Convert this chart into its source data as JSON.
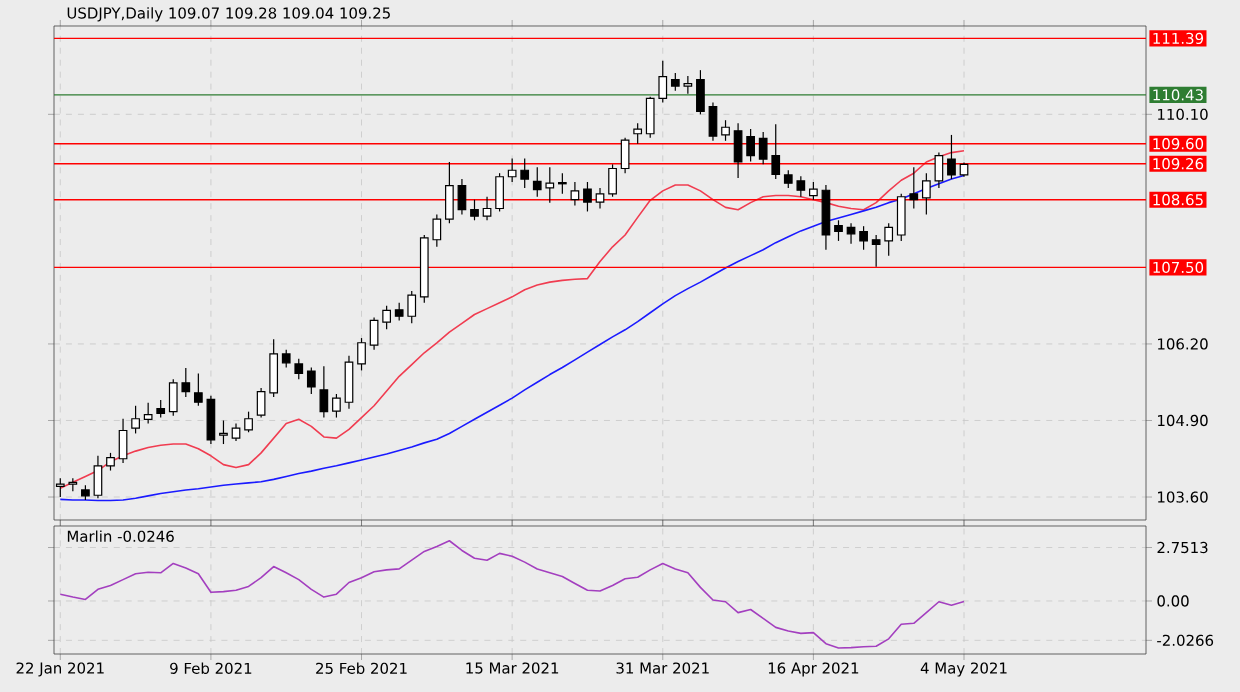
{
  "chart_data": [
    {
      "type": "candlestick",
      "title": "USDJPY,Daily 109.07 109.28 109.04 109.25",
      "categories": [
        null,
        null,
        null,
        null,
        null,
        null,
        null,
        null,
        null,
        null,
        null,
        null,
        null,
        null,
        null,
        null,
        null,
        null,
        null,
        null,
        null,
        null,
        null,
        null,
        null,
        null,
        null,
        null,
        null,
        null,
        null,
        null,
        null,
        null,
        null,
        null,
        null,
        null,
        null,
        null,
        null,
        null,
        null,
        null,
        null,
        null,
        null,
        null,
        null,
        null,
        null,
        null,
        null,
        null,
        null,
        null,
        null,
        null,
        null,
        null,
        null,
        null,
        null,
        null,
        null,
        null,
        null,
        null,
        null,
        null,
        null,
        null,
        null,
        null,
        null,
        null,
        null,
        null,
        null,
        null,
        null,
        null,
        null,
        null,
        null,
        null,
        null
      ],
      "ohlc": [
        [
          103.78,
          103.92,
          103.6,
          103.82
        ],
        [
          103.82,
          103.92,
          103.7,
          103.85
        ],
        [
          103.72,
          103.8,
          103.55,
          103.62
        ],
        [
          103.63,
          104.3,
          103.58,
          104.13
        ],
        [
          104.13,
          104.35,
          104.05,
          104.27
        ],
        [
          104.25,
          104.93,
          104.18,
          104.73
        ],
        [
          104.77,
          105.15,
          104.68,
          104.93
        ],
        [
          104.92,
          105.2,
          104.85,
          105.0
        ],
        [
          105.1,
          105.25,
          104.95,
          105.02
        ],
        [
          105.05,
          105.6,
          104.98,
          105.54
        ],
        [
          105.54,
          105.79,
          105.3,
          105.39
        ],
        [
          105.37,
          105.7,
          105.15,
          105.21
        ],
        [
          105.26,
          105.32,
          104.5,
          104.57
        ],
        [
          104.65,
          104.9,
          104.5,
          104.68
        ],
        [
          104.6,
          104.85,
          104.55,
          104.77
        ],
        [
          104.74,
          105.05,
          104.7,
          104.93
        ],
        [
          104.99,
          105.45,
          104.95,
          105.39
        ],
        [
          105.37,
          106.28,
          105.3,
          106.03
        ],
        [
          106.03,
          106.1,
          105.8,
          105.88
        ],
        [
          105.86,
          105.95,
          105.6,
          105.7
        ],
        [
          105.74,
          105.8,
          105.35,
          105.47
        ],
        [
          105.42,
          105.82,
          104.95,
          105.05
        ],
        [
          105.06,
          105.35,
          104.95,
          105.28
        ],
        [
          105.21,
          106.0,
          105.1,
          105.89
        ],
        [
          105.86,
          106.3,
          105.75,
          106.22
        ],
        [
          106.18,
          106.65,
          106.1,
          106.6
        ],
        [
          106.57,
          106.85,
          106.45,
          106.77
        ],
        [
          106.78,
          106.9,
          106.6,
          106.67
        ],
        [
          106.67,
          107.1,
          106.55,
          107.03
        ],
        [
          107.0,
          108.05,
          106.9,
          108.0
        ],
        [
          107.97,
          108.4,
          107.85,
          108.32
        ],
        [
          108.32,
          109.29,
          108.25,
          108.89
        ],
        [
          108.89,
          109.0,
          108.4,
          108.48
        ],
        [
          108.48,
          108.65,
          108.3,
          108.37
        ],
        [
          108.37,
          108.7,
          108.3,
          108.5
        ],
        [
          108.5,
          109.1,
          108.45,
          109.04
        ],
        [
          109.04,
          109.35,
          108.95,
          109.15
        ],
        [
          109.15,
          109.35,
          108.85,
          109.0
        ],
        [
          108.96,
          109.2,
          108.7,
          108.82
        ],
        [
          108.85,
          109.2,
          108.6,
          108.93
        ],
        [
          108.92,
          109.1,
          108.75,
          108.94
        ],
        [
          108.65,
          108.95,
          108.55,
          108.8
        ],
        [
          108.83,
          108.95,
          108.45,
          108.61
        ],
        [
          108.61,
          108.85,
          108.5,
          108.75
        ],
        [
          108.75,
          109.25,
          108.7,
          109.18
        ],
        [
          109.18,
          109.7,
          109.1,
          109.66
        ],
        [
          109.77,
          109.95,
          109.6,
          109.85
        ],
        [
          109.77,
          110.4,
          109.7,
          110.37
        ],
        [
          110.37,
          111.01,
          110.3,
          110.74
        ],
        [
          110.69,
          110.8,
          110.5,
          110.58
        ],
        [
          110.58,
          110.75,
          110.45,
          110.62
        ],
        [
          110.69,
          110.85,
          110.1,
          110.15
        ],
        [
          110.23,
          110.3,
          109.65,
          109.73
        ],
        [
          109.75,
          110.0,
          109.65,
          109.88
        ],
        [
          109.82,
          109.95,
          109.02,
          109.29
        ],
        [
          109.72,
          109.85,
          109.3,
          109.4
        ],
        [
          109.69,
          109.8,
          109.25,
          109.34
        ],
        [
          109.4,
          109.93,
          109.0,
          109.08
        ],
        [
          109.07,
          109.15,
          108.85,
          108.93
        ],
        [
          108.97,
          109.05,
          108.7,
          108.81
        ],
        [
          108.72,
          108.95,
          108.65,
          108.83
        ],
        [
          108.81,
          108.9,
          107.8,
          108.05
        ],
        [
          108.21,
          108.3,
          107.95,
          108.11
        ],
        [
          108.18,
          108.25,
          107.9,
          108.07
        ],
        [
          108.11,
          108.2,
          107.8,
          107.95
        ],
        [
          107.97,
          108.05,
          107.51,
          107.89
        ],
        [
          107.95,
          108.25,
          107.7,
          108.18
        ],
        [
          108.05,
          108.75,
          107.95,
          108.7
        ],
        [
          108.75,
          109.2,
          108.5,
          108.65
        ],
        [
          108.68,
          109.1,
          108.4,
          108.97
        ],
        [
          108.97,
          109.45,
          108.85,
          109.4
        ],
        [
          109.34,
          109.75,
          109.0,
          109.07
        ],
        [
          109.07,
          109.28,
          109.04,
          109.25
        ],
        null,
        null,
        null,
        null,
        null,
        null,
        null,
        null,
        null,
        null,
        null,
        null,
        null,
        null
      ],
      "series": [
        {
          "type": "line",
          "color": "#f03c50",
          "values": [
            103.75,
            103.85,
            103.95,
            104.05,
            104.2,
            104.3,
            104.38,
            104.44,
            104.48,
            104.5,
            104.5,
            104.42,
            104.3,
            104.15,
            104.1,
            104.15,
            104.35,
            104.6,
            104.85,
            104.92,
            104.8,
            104.62,
            104.6,
            104.75,
            104.95,
            105.15,
            105.4,
            105.65,
            105.85,
            106.05,
            106.22,
            106.4,
            106.55,
            106.7,
            106.8,
            106.9,
            107.0,
            107.12,
            107.2,
            107.25,
            107.28,
            107.3,
            107.31,
            107.6,
            107.85,
            108.05,
            108.35,
            108.64,
            108.8,
            108.9,
            108.9,
            108.8,
            108.65,
            108.52,
            108.48,
            108.6,
            108.7,
            108.72,
            108.72,
            108.7,
            108.65,
            108.6,
            108.54,
            108.5,
            108.48,
            108.6,
            108.8,
            108.98,
            109.1,
            109.29,
            109.38,
            109.45,
            109.48,
            null,
            null,
            null,
            null,
            null,
            null,
            null,
            null,
            null,
            null,
            null,
            null,
            null,
            null
          ]
        },
        {
          "type": "line",
          "color": "#1a1aff",
          "values": [
            103.56,
            103.55,
            103.55,
            103.54,
            103.54,
            103.55,
            103.58,
            103.62,
            103.66,
            103.69,
            103.72,
            103.74,
            103.77,
            103.8,
            103.82,
            103.84,
            103.86,
            103.9,
            103.95,
            104.0,
            104.04,
            104.09,
            104.13,
            104.18,
            104.23,
            104.28,
            104.33,
            104.39,
            104.45,
            104.52,
            104.58,
            104.68,
            104.8,
            104.92,
            105.04,
            105.16,
            105.28,
            105.42,
            105.55,
            105.68,
            105.8,
            105.93,
            106.06,
            106.19,
            106.32,
            106.44,
            106.58,
            106.73,
            106.88,
            107.02,
            107.14,
            107.25,
            107.37,
            107.49,
            107.6,
            107.7,
            107.8,
            107.92,
            108.02,
            108.12,
            108.2,
            108.28,
            108.34,
            108.4,
            108.46,
            108.52,
            108.6,
            108.66,
            108.75,
            108.84,
            108.92,
            109.0,
            109.06,
            null,
            null,
            null,
            null,
            null,
            null,
            null,
            null,
            null,
            null,
            null,
            null,
            null,
            null
          ]
        }
      ],
      "ylim": [
        103.21,
        111.6
      ],
      "yticks": [
        {
          "value": 103.6,
          "label": "103.60"
        },
        {
          "value": 104.9,
          "label": "104.90"
        },
        {
          "value": 106.2,
          "label": "106.20"
        },
        {
          "value": 110.1,
          "label": "110.10"
        }
      ],
      "ref_lines": [
        {
          "axis": "y",
          "value": 111.39,
          "label": "111.39",
          "color": "#ff0000"
        },
        {
          "axis": "y",
          "value": 110.43,
          "label": "110.43",
          "color": "#2e7d32"
        },
        {
          "axis": "y",
          "value": 109.6,
          "label": "109.60",
          "color": "#ff0000"
        },
        {
          "axis": "y",
          "value": 109.26,
          "label": "109.26",
          "color": "#ff0000"
        },
        {
          "axis": "y",
          "value": 108.65,
          "label": "108.65",
          "color": "#ff0000"
        },
        {
          "axis": "y",
          "value": 107.5,
          "label": "107.50",
          "color": "#ff0000"
        }
      ],
      "grid": true,
      "tick_labels": "y"
    },
    {
      "type": "line",
      "title": "Marlin -0.0246",
      "categories": [
        "22 Jan 2021",
        null,
        null,
        null,
        null,
        null,
        null,
        null,
        null,
        null,
        null,
        null,
        "9 Feb 2021",
        null,
        null,
        null,
        null,
        null,
        null,
        null,
        null,
        null,
        null,
        null,
        "25 Feb 2021",
        null,
        null,
        null,
        null,
        null,
        null,
        null,
        null,
        null,
        null,
        null,
        "15 Mar 2021",
        null,
        null,
        null,
        null,
        null,
        null,
        null,
        null,
        null,
        null,
        null,
        "31 Mar 2021",
        null,
        null,
        null,
        null,
        null,
        null,
        null,
        null,
        null,
        null,
        null,
        "16 Apr 2021",
        null,
        null,
        null,
        null,
        null,
        null,
        null,
        null,
        null,
        null,
        null,
        "4 May 2021",
        null,
        null,
        null,
        null,
        null,
        null,
        null,
        null,
        null,
        null,
        null,
        null,
        null,
        null
      ],
      "color": "#a33fbf",
      "values": [
        0.35,
        0.2,
        0.08,
        0.6,
        0.8,
        1.1,
        1.4,
        1.48,
        1.45,
        1.93,
        1.7,
        1.4,
        0.45,
        0.48,
        0.55,
        0.75,
        1.2,
        1.77,
        1.45,
        1.1,
        0.6,
        0.2,
        0.35,
        0.95,
        1.2,
        1.5,
        1.6,
        1.65,
        2.1,
        2.55,
        2.8,
        3.1,
        2.6,
        2.2,
        2.1,
        2.45,
        2.3,
        2.0,
        1.65,
        1.45,
        1.26,
        0.9,
        0.55,
        0.51,
        0.8,
        1.14,
        1.22,
        1.6,
        1.93,
        1.65,
        1.45,
        0.7,
        0.05,
        -0.04,
        -0.6,
        -0.44,
        -0.9,
        -1.36,
        -1.55,
        -1.67,
        -1.63,
        -2.2,
        -2.42,
        -2.4,
        -2.36,
        -2.33,
        -1.95,
        -1.2,
        -1.15,
        -0.6,
        -0.04,
        -0.22,
        -0.0246,
        null,
        null,
        null,
        null,
        null,
        null,
        null,
        null,
        null,
        null,
        null,
        null,
        null,
        null
      ],
      "ylim": [
        -2.73,
        3.86
      ],
      "yticks": [
        2.7513,
        {
          "value": 0,
          "label": "0.00"
        },
        -2.0266
      ],
      "grid": true
    }
  ]
}
